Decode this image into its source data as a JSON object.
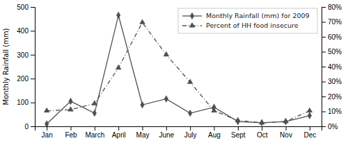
{
  "chart_data": {
    "type": "line",
    "categories": [
      "Jan",
      "Feb",
      "March",
      "April",
      "May",
      "June",
      "July",
      "Aug",
      "Sept",
      "Oct",
      "Nov",
      "Dec"
    ],
    "ylabel": "Monthly Rainfall (mm)",
    "ylim": [
      0,
      500
    ],
    "yticks": [
      0,
      100,
      200,
      300,
      400,
      500
    ],
    "y2lim": [
      0,
      80
    ],
    "y2ticks": [
      {
        "value": 0,
        "label": "0%"
      },
      {
        "value": 10,
        "label": "10%"
      },
      {
        "value": 20,
        "label": "20%"
      },
      {
        "value": 30,
        "label": "30%"
      },
      {
        "value": 40,
        "label": "40%"
      },
      {
        "value": 50,
        "label": "50%"
      },
      {
        "value": 60,
        "label": "60%"
      },
      {
        "value": 70,
        "label": "70%"
      },
      {
        "value": 80,
        "label": "80%"
      }
    ],
    "grid": false,
    "legend": "upper right",
    "series": [
      {
        "name": "Monthly Rainfall (mm) for 2009",
        "color": "#505050",
        "marker": "diamond",
        "line_style": "solid",
        "values": [
          10,
          105,
          55,
          465,
          90,
          115,
          55,
          80,
          20,
          15,
          20,
          45
        ]
      },
      {
        "name": "Percent of HH food insecure",
        "color": "#505050",
        "marker": "triangle",
        "line_style": "dashdot",
        "values": [
          65,
          70,
          95,
          245,
          435,
          300,
          185,
          65,
          25,
          15,
          20,
          65
        ]
      }
    ]
  }
}
